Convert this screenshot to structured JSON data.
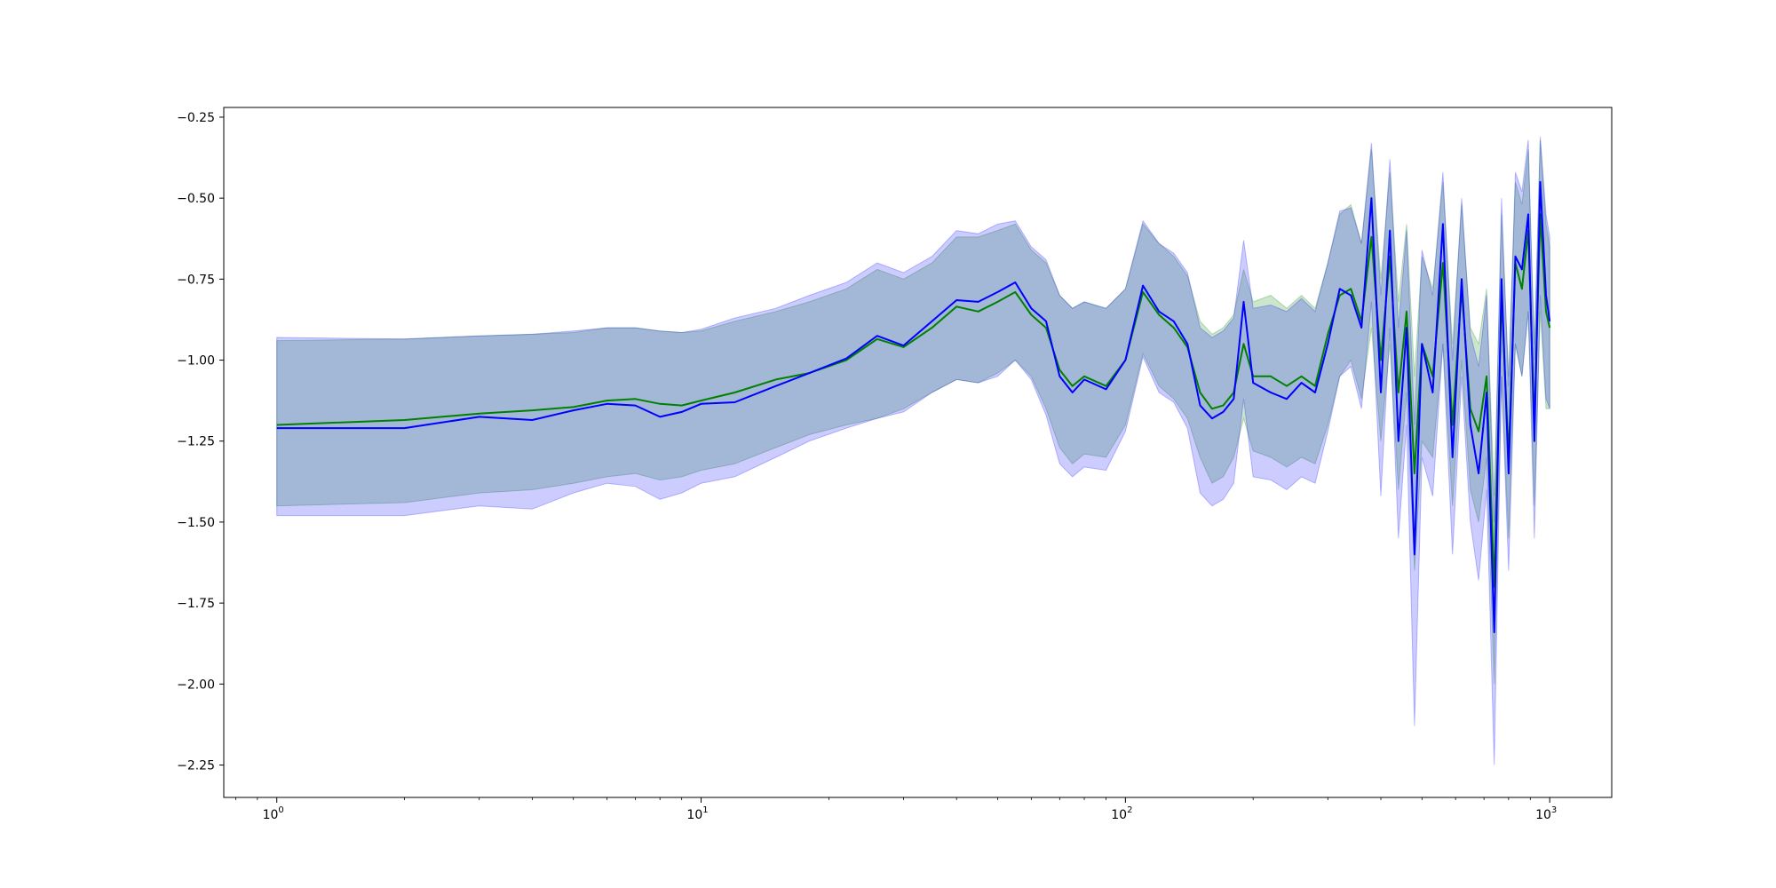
{
  "chart_data": {
    "type": "line",
    "title": "",
    "xlabel": "",
    "ylabel": "",
    "xscale": "log",
    "xlim": [
      0.75,
      1400
    ],
    "ylim": [
      -2.35,
      -0.22
    ],
    "grid": false,
    "x_ticks": [
      {
        "value": 1,
        "base": "10",
        "exp": "0"
      },
      {
        "value": 10,
        "base": "10",
        "exp": "1"
      },
      {
        "value": 100,
        "base": "10",
        "exp": "2"
      },
      {
        "value": 1000,
        "base": "10",
        "exp": "3"
      }
    ],
    "y_ticks": [
      {
        "value": -0.25,
        "label": "−0.25"
      },
      {
        "value": -0.5,
        "label": "−0.50"
      },
      {
        "value": -0.75,
        "label": "−0.75"
      },
      {
        "value": -1.0,
        "label": "−1.00"
      },
      {
        "value": -1.25,
        "label": "−1.25"
      },
      {
        "value": -1.5,
        "label": "−1.50"
      },
      {
        "value": -1.75,
        "label": "−1.75"
      },
      {
        "value": -2.0,
        "label": "−2.00"
      },
      {
        "value": -2.25,
        "label": "−2.25"
      }
    ],
    "series": [
      {
        "color": "#008000",
        "band_color": "#008000",
        "band_opacity": 0.2,
        "x": [
          1,
          2,
          3,
          4,
          5,
          6,
          7,
          8,
          9,
          10,
          12,
          15,
          18,
          22,
          26,
          30,
          35,
          40,
          45,
          50,
          55,
          60,
          65,
          70,
          75,
          80,
          90,
          100,
          110,
          120,
          130,
          140,
          150,
          160,
          170,
          180,
          190,
          200,
          220,
          240,
          260,
          280,
          300,
          320,
          340,
          360,
          380,
          400,
          420,
          440,
          460,
          480,
          500,
          530,
          560,
          590,
          620,
          650,
          680,
          710,
          740,
          770,
          800,
          830,
          860,
          890,
          920,
          950,
          980,
          1000
        ],
        "y": [
          -1.2,
          -1.185,
          -1.165,
          -1.155,
          -1.145,
          -1.125,
          -1.12,
          -1.135,
          -1.14,
          -1.125,
          -1.1,
          -1.06,
          -1.04,
          -1.0,
          -0.935,
          -0.96,
          -0.9,
          -0.835,
          -0.85,
          -0.82,
          -0.79,
          -0.86,
          -0.9,
          -1.03,
          -1.08,
          -1.05,
          -1.08,
          -1.0,
          -0.79,
          -0.86,
          -0.9,
          -0.96,
          -1.1,
          -1.15,
          -1.14,
          -1.1,
          -0.95,
          -1.05,
          -1.05,
          -1.08,
          -1.05,
          -1.08,
          -0.92,
          -0.8,
          -0.78,
          -0.88,
          -0.62,
          -1.0,
          -0.68,
          -1.1,
          -0.85,
          -1.35,
          -0.95,
          -1.05,
          -0.7,
          -1.2,
          -0.78,
          -1.15,
          -1.22,
          -1.05,
          -1.7,
          -0.8,
          -1.3,
          -0.7,
          -0.78,
          -0.6,
          -1.2,
          -0.55,
          -0.85,
          -0.9
        ],
        "lower": [
          -1.45,
          -1.44,
          -1.41,
          -1.4,
          -1.38,
          -1.36,
          -1.35,
          -1.37,
          -1.36,
          -1.34,
          -1.32,
          -1.27,
          -1.23,
          -1.2,
          -1.18,
          -1.15,
          -1.1,
          -1.06,
          -1.07,
          -1.04,
          -1.0,
          -1.05,
          -1.15,
          -1.27,
          -1.32,
          -1.29,
          -1.3,
          -1.2,
          -0.98,
          -1.08,
          -1.12,
          -1.18,
          -1.3,
          -1.38,
          -1.36,
          -1.3,
          -1.18,
          -1.28,
          -1.3,
          -1.33,
          -1.3,
          -1.32,
          -1.2,
          -1.05,
          -1.0,
          -1.12,
          -0.9,
          -1.25,
          -0.95,
          -1.4,
          -1.1,
          -1.65,
          -1.25,
          -1.3,
          -0.95,
          -1.45,
          -1.0,
          -1.4,
          -1.5,
          -1.3,
          -2.0,
          -1.05,
          -1.55,
          -0.95,
          -1.05,
          -0.85,
          -1.45,
          -0.85,
          -1.15,
          -1.15
        ],
        "upper": [
          -0.94,
          -0.935,
          -0.925,
          -0.92,
          -0.915,
          -0.9,
          -0.9,
          -0.91,
          -0.915,
          -0.91,
          -0.88,
          -0.85,
          -0.82,
          -0.78,
          -0.72,
          -0.75,
          -0.7,
          -0.62,
          -0.62,
          -0.6,
          -0.58,
          -0.66,
          -0.7,
          -0.8,
          -0.84,
          -0.82,
          -0.84,
          -0.78,
          -0.58,
          -0.64,
          -0.68,
          -0.74,
          -0.88,
          -0.92,
          -0.9,
          -0.86,
          -0.72,
          -0.82,
          -0.8,
          -0.84,
          -0.8,
          -0.84,
          -0.7,
          -0.55,
          -0.52,
          -0.64,
          -0.35,
          -0.75,
          -0.42,
          -0.82,
          -0.58,
          -1.05,
          -0.68,
          -0.78,
          -0.45,
          -0.95,
          -0.52,
          -0.9,
          -0.95,
          -0.78,
          -1.42,
          -0.55,
          -1.05,
          -0.45,
          -0.52,
          -0.35,
          -0.95,
          -0.32,
          -0.58,
          -0.65
        ]
      },
      {
        "color": "#0000ff",
        "band_color": "#0000ff",
        "band_opacity": 0.2,
        "x": [
          1,
          2,
          3,
          4,
          5,
          6,
          7,
          8,
          9,
          10,
          12,
          15,
          18,
          22,
          26,
          30,
          35,
          40,
          45,
          50,
          55,
          60,
          65,
          70,
          75,
          80,
          90,
          100,
          110,
          120,
          130,
          140,
          150,
          160,
          170,
          180,
          190,
          200,
          220,
          240,
          260,
          280,
          300,
          320,
          340,
          360,
          380,
          400,
          420,
          440,
          460,
          480,
          500,
          530,
          560,
          590,
          620,
          650,
          680,
          710,
          740,
          770,
          800,
          830,
          860,
          890,
          920,
          950,
          980,
          1000
        ],
        "y": [
          -1.21,
          -1.21,
          -1.175,
          -1.185,
          -1.155,
          -1.135,
          -1.14,
          -1.175,
          -1.16,
          -1.135,
          -1.13,
          -1.08,
          -1.04,
          -0.995,
          -0.925,
          -0.955,
          -0.88,
          -0.815,
          -0.82,
          -0.79,
          -0.76,
          -0.84,
          -0.88,
          -1.05,
          -1.1,
          -1.06,
          -1.09,
          -1.0,
          -0.77,
          -0.85,
          -0.88,
          -0.95,
          -1.14,
          -1.18,
          -1.16,
          -1.12,
          -0.82,
          -1.07,
          -1.1,
          -1.12,
          -1.07,
          -1.1,
          -0.95,
          -0.78,
          -0.8,
          -0.9,
          -0.5,
          -1.1,
          -0.6,
          -1.25,
          -0.9,
          -1.6,
          -0.95,
          -1.1,
          -0.58,
          -1.3,
          -0.75,
          -1.2,
          -1.35,
          -1.1,
          -1.84,
          -0.75,
          -1.35,
          -0.68,
          -0.72,
          -0.55,
          -1.25,
          -0.45,
          -0.8,
          -0.88
        ],
        "lower": [
          -1.48,
          -1.48,
          -1.45,
          -1.46,
          -1.41,
          -1.38,
          -1.39,
          -1.43,
          -1.41,
          -1.38,
          -1.36,
          -1.3,
          -1.25,
          -1.21,
          -1.18,
          -1.16,
          -1.1,
          -1.06,
          -1.07,
          -1.05,
          -1.0,
          -1.06,
          -1.17,
          -1.32,
          -1.36,
          -1.33,
          -1.34,
          -1.22,
          -0.99,
          -1.1,
          -1.13,
          -1.21,
          -1.41,
          -1.45,
          -1.43,
          -1.38,
          -1.12,
          -1.36,
          -1.37,
          -1.4,
          -1.36,
          -1.38,
          -1.22,
          -1.05,
          -1.02,
          -1.15,
          -0.82,
          -1.42,
          -0.9,
          -1.55,
          -1.2,
          -2.13,
          -1.3,
          -1.42,
          -0.95,
          -1.6,
          -1.05,
          -1.5,
          -1.68,
          -1.4,
          -2.25,
          -1.05,
          -1.65,
          -0.95,
          -1.05,
          -0.85,
          -1.55,
          -0.8,
          -1.12,
          -1.15
        ],
        "upper": [
          -0.93,
          -0.935,
          -0.925,
          -0.92,
          -0.91,
          -0.9,
          -0.9,
          -0.91,
          -0.915,
          -0.905,
          -0.87,
          -0.84,
          -0.8,
          -0.76,
          -0.7,
          -0.73,
          -0.68,
          -0.6,
          -0.61,
          -0.58,
          -0.57,
          -0.65,
          -0.69,
          -0.8,
          -0.84,
          -0.82,
          -0.84,
          -0.78,
          -0.57,
          -0.64,
          -0.67,
          -0.73,
          -0.9,
          -0.93,
          -0.91,
          -0.87,
          -0.63,
          -0.84,
          -0.83,
          -0.85,
          -0.81,
          -0.85,
          -0.7,
          -0.54,
          -0.53,
          -0.64,
          -0.33,
          -0.8,
          -0.38,
          -0.9,
          -0.6,
          -1.2,
          -0.66,
          -0.8,
          -0.42,
          -1.0,
          -0.5,
          -0.92,
          -1.02,
          -0.8,
          -1.5,
          -0.5,
          -1.08,
          -0.42,
          -0.48,
          -0.32,
          -1.0,
          -0.31,
          -0.55,
          -0.62
        ]
      }
    ]
  }
}
